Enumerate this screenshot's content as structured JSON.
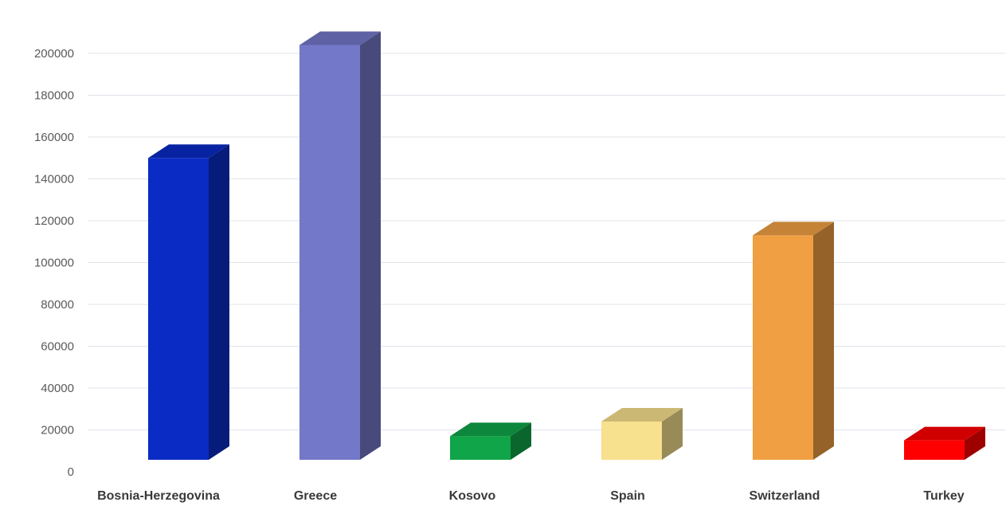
{
  "chart_data": {
    "type": "bar",
    "title": "",
    "xlabel": "",
    "ylabel": "",
    "ylim": [
      0,
      220000
    ],
    "yticks": [
      0,
      20000,
      40000,
      60000,
      80000,
      100000,
      120000,
      140000,
      160000,
      180000,
      200000
    ],
    "categories": [
      "Bosnia-Herzegovina",
      "Greece",
      "Kosovo",
      "Spain",
      "Switzerland",
      "Turkey"
    ],
    "values": [
      150000,
      204000,
      17000,
      24000,
      113000,
      15000
    ],
    "colors": [
      "#0a2bc4",
      "#7478c8",
      "#10a548",
      "#f7e08e",
      "#f0a043",
      "#ff0000"
    ],
    "grid": true,
    "legend": "none",
    "style": "3d-column"
  }
}
